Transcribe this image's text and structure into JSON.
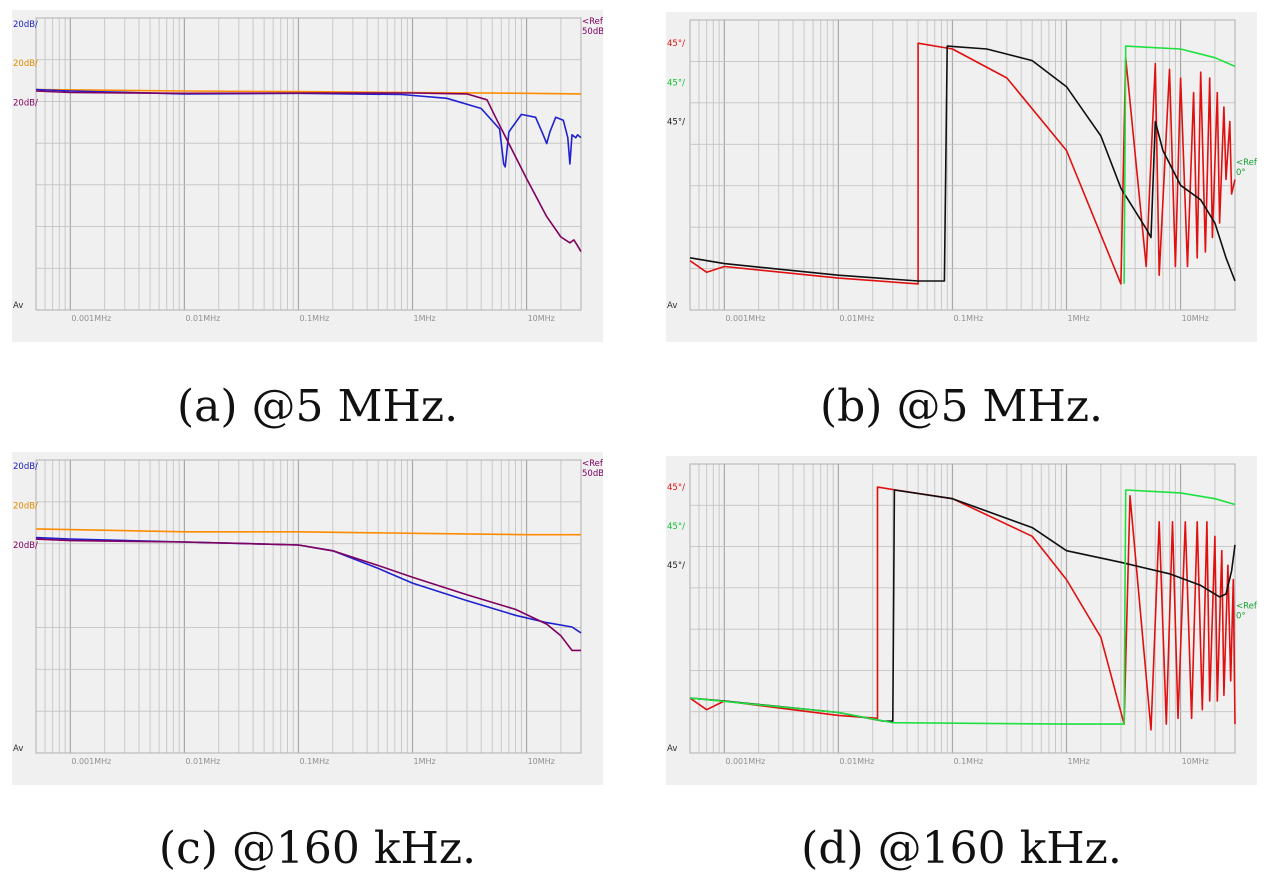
{
  "captions": [
    "(a) @5 MHz.",
    "(b) @5 MHz.",
    "(c) @160 kHz.",
    "(d) @160 kHz."
  ],
  "chart_data": [
    {
      "type": "line",
      "panel": "a",
      "log_x": true,
      "xlim": [
        0.0005,
        30
      ],
      "ylim": [
        0,
        10
      ],
      "grid": true,
      "x_ticks": [
        0.001,
        0.01,
        0.1,
        1,
        10
      ],
      "x_tick_labels": [
        "0.001MHz",
        "0.01MHz",
        "0.1MHz",
        "1MHz",
        "10MHz"
      ],
      "y_gridlines": 7,
      "left_labels": [
        {
          "text": "20dB/",
          "color": "#2020c0",
          "y": 9.7
        },
        {
          "text": "20dB/",
          "color": "#e08a00",
          "y": 8.35
        },
        {
          "text": "20dB/",
          "color": "#800060",
          "y": 7.0
        }
      ],
      "right_labels": [
        {
          "text": "<Ref",
          "color": "#800060",
          "y": 9.8
        },
        {
          "text": "50dB",
          "color": "#800060",
          "y": 9.45
        }
      ],
      "bottom_left_label": "Av",
      "series": [
        {
          "color": "#ff8c00",
          "points": [
            [
              0.0005,
              7.55
            ],
            [
              0.01,
              7.5
            ],
            [
              0.1,
              7.48
            ],
            [
              1,
              7.45
            ],
            [
              10,
              7.42
            ],
            [
              30,
              7.4
            ]
          ]
        },
        {
          "color": "#2020d0",
          "points": [
            [
              0.0005,
              7.55
            ],
            [
              0.001,
              7.5
            ],
            [
              0.01,
              7.4
            ],
            [
              0.1,
              7.42
            ],
            [
              0.8,
              7.38
            ],
            [
              2,
              7.25
            ],
            [
              4,
              6.9
            ],
            [
              5.8,
              6.2
            ],
            [
              6.3,
              5.0
            ],
            [
              6.5,
              4.9
            ],
            [
              7,
              6.1
            ],
            [
              9,
              6.7
            ],
            [
              12,
              6.6
            ],
            [
              14,
              6.0
            ],
            [
              15,
              5.7
            ],
            [
              16,
              6.1
            ],
            [
              18,
              6.6
            ],
            [
              21,
              6.5
            ],
            [
              23,
              5.9
            ],
            [
              24,
              5.0
            ],
            [
              25,
              6.0
            ],
            [
              27,
              5.9
            ],
            [
              28,
              6.0
            ],
            [
              30,
              5.9
            ]
          ]
        },
        {
          "color": "#800060",
          "points": [
            [
              0.0005,
              7.5
            ],
            [
              0.001,
              7.45
            ],
            [
              0.01,
              7.42
            ],
            [
              0.1,
              7.43
            ],
            [
              1,
              7.43
            ],
            [
              3,
              7.4
            ],
            [
              4.5,
              7.2
            ],
            [
              5.5,
              6.5
            ],
            [
              7,
              5.7
            ],
            [
              10,
              4.5
            ],
            [
              15,
              3.2
            ],
            [
              20,
              2.5
            ],
            [
              24,
              2.3
            ],
            [
              26,
              2.4
            ],
            [
              28,
              2.2
            ],
            [
              30,
              2.0
            ]
          ]
        }
      ]
    },
    {
      "type": "line",
      "panel": "b",
      "log_x": true,
      "xlim": [
        0.0005,
        30
      ],
      "ylim": [
        0,
        10
      ],
      "grid": true,
      "x_ticks": [
        0.001,
        0.01,
        0.1,
        1,
        10
      ],
      "x_tick_labels": [
        "0.001MHz",
        "0.01MHz",
        "0.1MHz",
        "1MHz",
        "10MHz"
      ],
      "y_gridlines": 7,
      "left_labels": [
        {
          "text": "45°/",
          "color": "#e01010",
          "y": 9.1
        },
        {
          "text": "45°/",
          "color": "#10c030",
          "y": 7.75
        },
        {
          "text": "45°/",
          "color": "#202020",
          "y": 6.4
        }
      ],
      "right_labels": [
        {
          "text": "<Ref",
          "color": "#10a030",
          "y": 5.0
        },
        {
          "text": "0°",
          "color": "#10a030",
          "y": 4.65
        }
      ],
      "bottom_left_label": "Av",
      "series": [
        {
          "color": "#e01010",
          "points": [
            [
              0.0005,
              1.7
            ],
            [
              0.0007,
              1.3
            ],
            [
              0.001,
              1.5
            ],
            [
              0.01,
              1.1
            ],
            [
              0.05,
              0.9
            ],
            [
              0.05,
              9.2
            ],
            [
              0.1,
              9.0
            ],
            [
              0.3,
              8.0
            ],
            [
              1,
              5.5
            ],
            [
              3,
              0.9
            ],
            [
              3.3,
              8.7
            ],
            [
              5,
              1.5
            ],
            [
              6,
              8.5
            ],
            [
              6.5,
              1.2
            ],
            [
              8,
              8.3
            ],
            [
              9,
              1.5
            ],
            [
              10,
              8.0
            ],
            [
              11.5,
              1.5
            ],
            [
              13,
              7.5
            ],
            [
              14,
              1.8
            ],
            [
              15,
              8.2
            ],
            [
              16.5,
              2.0
            ],
            [
              18,
              8.0
            ],
            [
              19,
              2.5
            ],
            [
              21,
              7.5
            ],
            [
              22,
              3.0
            ],
            [
              24,
              7.0
            ],
            [
              25,
              4.5
            ],
            [
              27,
              6.5
            ],
            [
              28,
              4.0
            ],
            [
              30,
              4.5
            ]
          ]
        },
        {
          "color": "#101010",
          "points": [
            [
              0.0005,
              1.8
            ],
            [
              0.001,
              1.6
            ],
            [
              0.01,
              1.2
            ],
            [
              0.05,
              1.0
            ],
            [
              0.085,
              1.0
            ],
            [
              0.09,
              9.1
            ],
            [
              0.2,
              9.0
            ],
            [
              0.5,
              8.6
            ],
            [
              1,
              7.7
            ],
            [
              2,
              6.0
            ],
            [
              3,
              4.2
            ],
            [
              5,
              2.8
            ],
            [
              5.5,
              2.5
            ],
            [
              6,
              6.5
            ],
            [
              7,
              5.5
            ],
            [
              10,
              4.3
            ],
            [
              15,
              3.8
            ],
            [
              20,
              3.0
            ],
            [
              25,
              1.8
            ],
            [
              30,
              1.0
            ]
          ]
        },
        {
          "color": "#20e040",
          "points": [
            [
              3.2,
              0.9
            ],
            [
              3.3,
              9.1
            ],
            [
              10,
              9.0
            ],
            [
              20,
              8.7
            ],
            [
              30,
              8.4
            ]
          ]
        }
      ]
    },
    {
      "type": "line",
      "panel": "c",
      "log_x": true,
      "xlim": [
        0.0005,
        30
      ],
      "ylim": [
        0,
        10
      ],
      "grid": true,
      "x_ticks": [
        0.001,
        0.01,
        0.1,
        1,
        10
      ],
      "x_tick_labels": [
        "0.001MHz",
        "0.01MHz",
        "0.1MHz",
        "1MHz",
        "10MHz"
      ],
      "y_gridlines": 7,
      "left_labels": [
        {
          "text": "20dB/",
          "color": "#2020c0",
          "y": 9.7
        },
        {
          "text": "20dB/",
          "color": "#e08a00",
          "y": 8.35
        },
        {
          "text": "20dB/",
          "color": "#800060",
          "y": 7.0
        }
      ],
      "right_labels": [
        {
          "text": "<Ref",
          "color": "#800060",
          "y": 9.8
        },
        {
          "text": "50dB",
          "color": "#800060",
          "y": 9.45
        }
      ],
      "bottom_left_label": "Av",
      "series": [
        {
          "color": "#ff8c00",
          "points": [
            [
              0.0005,
              7.65
            ],
            [
              0.01,
              7.55
            ],
            [
              0.1,
              7.55
            ],
            [
              1,
              7.5
            ],
            [
              10,
              7.45
            ],
            [
              30,
              7.45
            ]
          ]
        },
        {
          "color": "#2020d0",
          "points": [
            [
              0.0005,
              7.35
            ],
            [
              0.001,
              7.3
            ],
            [
              0.01,
              7.2
            ],
            [
              0.1,
              7.1
            ],
            [
              0.2,
              6.9
            ],
            [
              0.5,
              6.3
            ],
            [
              1,
              5.8
            ],
            [
              3,
              5.2
            ],
            [
              8,
              4.7
            ],
            [
              15,
              4.45
            ],
            [
              25,
              4.3
            ],
            [
              30,
              4.1
            ]
          ]
        },
        {
          "color": "#800060",
          "points": [
            [
              0.0005,
              7.3
            ],
            [
              0.001,
              7.25
            ],
            [
              0.01,
              7.2
            ],
            [
              0.1,
              7.1
            ],
            [
              0.2,
              6.9
            ],
            [
              0.5,
              6.4
            ],
            [
              1,
              6.0
            ],
            [
              3,
              5.4
            ],
            [
              8,
              4.9
            ],
            [
              15,
              4.4
            ],
            [
              20,
              4.0
            ],
            [
              25,
              3.5
            ],
            [
              30,
              3.5
            ]
          ]
        }
      ]
    },
    {
      "type": "line",
      "panel": "d",
      "log_x": true,
      "xlim": [
        0.0005,
        30
      ],
      "ylim": [
        0,
        10
      ],
      "grid": true,
      "x_ticks": [
        0.001,
        0.01,
        0.1,
        1,
        10
      ],
      "x_tick_labels": [
        "0.001MHz",
        "0.01MHz",
        "0.1MHz",
        "1MHz",
        "10MHz"
      ],
      "y_gridlines": 7,
      "left_labels": [
        {
          "text": "45°/",
          "color": "#e01010",
          "y": 9.1
        },
        {
          "text": "45°/",
          "color": "#10c030",
          "y": 7.75
        },
        {
          "text": "45°/",
          "color": "#202020",
          "y": 6.4
        }
      ],
      "right_labels": [
        {
          "text": "<Ref",
          "color": "#10a030",
          "y": 5.0
        },
        {
          "text": "0°",
          "color": "#10a030",
          "y": 4.65
        }
      ],
      "bottom_left_label": "Av",
      "series": [
        {
          "color": "#e01010",
          "points": [
            [
              0.0005,
              1.9
            ],
            [
              0.0007,
              1.5
            ],
            [
              0.001,
              1.8
            ],
            [
              0.01,
              1.3
            ],
            [
              0.022,
              1.2
            ],
            [
              0.022,
              9.2
            ],
            [
              0.1,
              8.8
            ],
            [
              0.5,
              7.5
            ],
            [
              1,
              6.0
            ],
            [
              2,
              4.0
            ],
            [
              3.2,
              1.0
            ],
            [
              3.6,
              8.9
            ],
            [
              5.5,
              0.8
            ],
            [
              6.5,
              8.0
            ],
            [
              7.5,
              1.0
            ],
            [
              8.5,
              8.0
            ],
            [
              9.5,
              1.2
            ],
            [
              11,
              8.0
            ],
            [
              12.5,
              1.2
            ],
            [
              14,
              8.0
            ],
            [
              15.5,
              1.5
            ],
            [
              17,
              8.0
            ],
            [
              18,
              1.8
            ],
            [
              20,
              7.5
            ],
            [
              21,
              1.8
            ],
            [
              23,
              7.0
            ],
            [
              24,
              2.0
            ],
            [
              26,
              6.5
            ],
            [
              27.5,
              2.5
            ],
            [
              29,
              6.0
            ],
            [
              30,
              1.0
            ]
          ]
        },
        {
          "color": "#101010",
          "points": [
            [
              0.0005,
              1.9
            ],
            [
              0.001,
              1.8
            ],
            [
              0.01,
              1.4
            ],
            [
              0.025,
              1.1
            ],
            [
              0.03,
              1.1
            ],
            [
              0.031,
              9.1
            ],
            [
              0.1,
              8.8
            ],
            [
              0.5,
              7.8
            ],
            [
              1,
              7.0
            ],
            [
              3,
              6.6
            ],
            [
              8,
              6.2
            ],
            [
              15,
              5.8
            ],
            [
              22,
              5.4
            ],
            [
              25,
              5.5
            ],
            [
              28,
              6.3
            ],
            [
              30,
              7.2
            ]
          ]
        },
        {
          "color": "#20e040",
          "points": [
            [
              0.0005,
              1.9
            ],
            [
              0.01,
              1.4
            ],
            [
              0.03,
              1.05
            ],
            [
              1,
              1.0
            ],
            [
              3.2,
              1.0
            ],
            [
              3.3,
              9.1
            ],
            [
              10,
              9.0
            ],
            [
              20,
              8.8
            ],
            [
              30,
              8.6
            ]
          ]
        }
      ]
    }
  ]
}
